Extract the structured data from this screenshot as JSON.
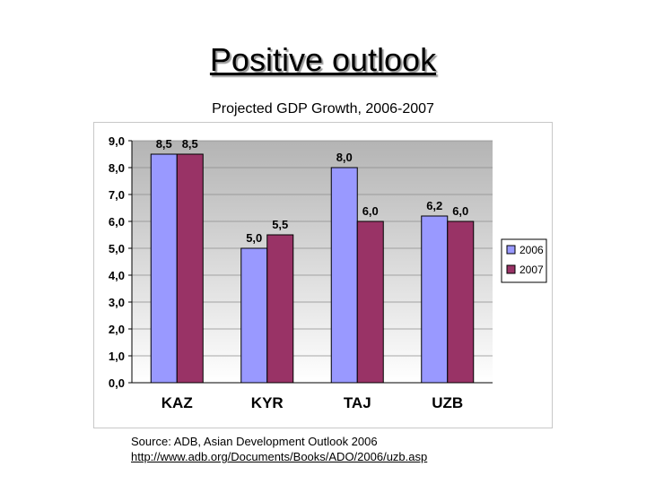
{
  "slide": {
    "title": "Positive outlook",
    "source_line1": "Source: ADB, Asian Development Outlook 2006",
    "source_line2": "http://www.adb.org/Documents/Books/ADO/2006/uzb.asp"
  },
  "chart_data": {
    "type": "bar",
    "title": "Projected GDP Growth, 2006-2007",
    "categories": [
      "KAZ",
      "KYR",
      "TAJ",
      "UZB"
    ],
    "series": [
      {
        "name": "2006",
        "values": [
          8.5,
          5.0,
          8.0,
          6.2
        ],
        "labels": [
          "8,5",
          "5,0",
          "8,0",
          "6,2"
        ],
        "color": "#9999ff"
      },
      {
        "name": "2007",
        "values": [
          8.5,
          5.5,
          6.0,
          6.0
        ],
        "labels": [
          "8,5",
          "5,5",
          "6,0",
          "6,0"
        ],
        "color": "#993366"
      }
    ],
    "ylim": [
      0,
      9
    ],
    "yticks": [
      0,
      1,
      2,
      3,
      4,
      5,
      6,
      7,
      8,
      9
    ],
    "ytick_labels": [
      "0,0",
      "1,0",
      "2,0",
      "3,0",
      "4,0",
      "5,0",
      "6,0",
      "7,0",
      "8,0",
      "9,0"
    ],
    "grid": true,
    "legend_position": "right"
  }
}
